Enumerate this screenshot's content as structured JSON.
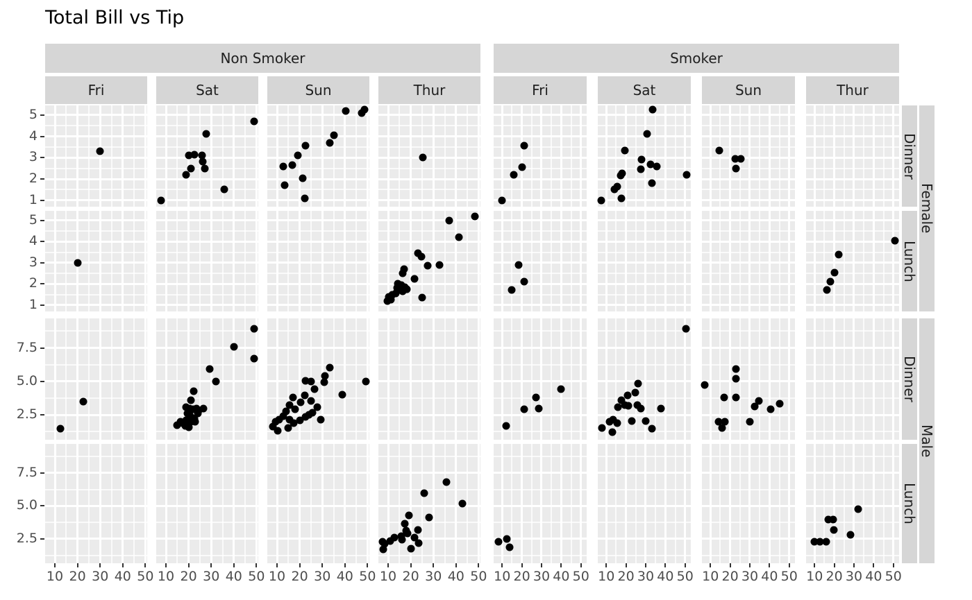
{
  "chart_data": {
    "type": "scatter",
    "title": "Total Bill vs Tip",
    "xlabel": "",
    "ylabel": "",
    "legend": "none",
    "grid": "on",
    "point_color": "#000000",
    "panel_bg": "#ebebeb",
    "strip_bg": "#d6d6d6",
    "x_ticks": [
      {
        "v": 10,
        "t": "10"
      },
      {
        "v": 20,
        "t": "20"
      },
      {
        "v": 30,
        "t": "30"
      },
      {
        "v": 40,
        "t": "40"
      },
      {
        "v": 50,
        "t": "50"
      }
    ],
    "x_minor": [
      15,
      25,
      35,
      45
    ],
    "col_groups": [
      {
        "label": "Non Smoker",
        "days": [
          "Fri",
          "Sat",
          "Sun",
          "Thur"
        ]
      },
      {
        "label": "Smoker",
        "days": [
          "Fri",
          "Sat",
          "Sun",
          "Thur"
        ]
      }
    ],
    "row_strips": [
      {
        "time": "Dinner",
        "sex": "Female",
        "y_ticks": [
          {
            "v": 5,
            "t": "5"
          },
          {
            "v": 4,
            "t": "4"
          },
          {
            "v": 3,
            "t": "3"
          },
          {
            "v": 2,
            "t": "2"
          },
          {
            "v": 1,
            "t": "1"
          }
        ],
        "y_minor": [
          1.5,
          2.5,
          3.5,
          4.5
        ],
        "y_domain": [
          0.7,
          5.45
        ]
      },
      {
        "time": "Lunch",
        "sex": "Female",
        "y_ticks": [
          {
            "v": 5,
            "t": "5"
          },
          {
            "v": 4,
            "t": "4"
          },
          {
            "v": 3,
            "t": "3"
          },
          {
            "v": 2,
            "t": "2"
          },
          {
            "v": 1,
            "t": "1"
          }
        ],
        "y_minor": [
          1.5,
          2.5,
          3.5,
          4.5
        ],
        "y_domain": [
          0.7,
          5.45
        ]
      },
      {
        "time": "Dinner",
        "sex": "Male",
        "y_ticks": [
          {
            "v": 7.5,
            "t": "7.5"
          },
          {
            "v": 5,
            "t": "5.0"
          },
          {
            "v": 2.5,
            "t": "2.5"
          }
        ],
        "y_minor": [
          1.25,
          3.75,
          6.25,
          8.75
        ],
        "y_domain": [
          0.65,
          9.7
        ]
      },
      {
        "time": "Lunch",
        "sex": "Male",
        "y_ticks": [
          {
            "v": 7.5,
            "t": "7.5"
          },
          {
            "v": 5,
            "t": "5.0"
          },
          {
            "v": 2.5,
            "t": "2.5"
          }
        ],
        "y_minor": [
          1.25,
          3.75,
          6.25,
          8.75
        ],
        "y_domain": [
          0.65,
          9.7
        ]
      }
    ],
    "sex_groups": [
      "Female",
      "Male"
    ],
    "points": [
      [
        [
          [
            29.9,
            3.3
          ]
        ],
        [
          [
            7.9,
            1.0
          ],
          [
            18.9,
            2.2
          ],
          [
            21.1,
            2.5
          ],
          [
            20.1,
            3.1
          ],
          [
            22.5,
            3.15
          ],
          [
            25.9,
            3.1
          ],
          [
            26.4,
            2.8
          ],
          [
            27.2,
            2.5
          ],
          [
            27.8,
            4.1
          ],
          [
            35.7,
            1.5
          ],
          [
            48.9,
            4.7
          ]
        ],
        [
          [
            12.7,
            2.6
          ],
          [
            13.5,
            1.7
          ],
          [
            16.8,
            2.65
          ],
          [
            19.2,
            3.1
          ],
          [
            21.4,
            2.05
          ],
          [
            22.3,
            1.1
          ],
          [
            22.6,
            3.55
          ],
          [
            33.3,
            3.7
          ],
          [
            35.1,
            4.05
          ],
          [
            40.4,
            5.2
          ],
          [
            47.4,
            5.1
          ],
          [
            48.6,
            5.25
          ]
        ],
        [
          [
            25.3,
            3.0
          ]
        ],
        [
          [
            10.0,
            1.0
          ],
          [
            16.0,
            2.2
          ],
          [
            20.0,
            2.55
          ],
          [
            21.2,
            3.55
          ]
        ],
        [
          [
            7.4,
            1.0
          ],
          [
            14.1,
            1.5
          ],
          [
            15.7,
            1.65
          ],
          [
            17.3,
            2.15
          ],
          [
            18.2,
            2.25
          ],
          [
            17.7,
            1.1
          ],
          [
            19.5,
            3.35
          ],
          [
            28.0,
            2.9
          ],
          [
            27.6,
            2.45
          ],
          [
            30.7,
            4.1
          ],
          [
            32.6,
            2.7
          ],
          [
            35.6,
            2.6
          ],
          [
            33.6,
            5.25
          ],
          [
            33.0,
            1.8
          ],
          [
            50.9,
            2.2
          ]
        ],
        [
          [
            14.4,
            3.35
          ],
          [
            22.7,
            2.95
          ],
          [
            25.4,
            2.95
          ],
          [
            22.8,
            2.5
          ]
        ],
        []
      ],
      [
        [
          [
            20.2,
            3.0
          ]
        ],
        [],
        [],
        [
          [
            37.1,
            5.0
          ],
          [
            48.2,
            5.2
          ],
          [
            41.2,
            4.2
          ],
          [
            23.1,
            3.45
          ],
          [
            24.8,
            3.3
          ],
          [
            27.5,
            2.85
          ],
          [
            32.8,
            2.9
          ],
          [
            17.1,
            2.7
          ],
          [
            16.3,
            2.5
          ],
          [
            21.6,
            2.25
          ],
          [
            14.4,
            2.0
          ],
          [
            15.7,
            1.95
          ],
          [
            17.3,
            1.85
          ],
          [
            18.3,
            1.75
          ],
          [
            13.9,
            1.8
          ],
          [
            15.2,
            1.7
          ],
          [
            16.4,
            1.65
          ],
          [
            13.4,
            1.55
          ],
          [
            11.8,
            1.5
          ],
          [
            10.3,
            1.4
          ],
          [
            9.8,
            1.2
          ],
          [
            11.3,
            1.25
          ],
          [
            25.1,
            1.35
          ]
        ],
        [
          [
            18.3,
            2.9
          ],
          [
            21.2,
            2.1
          ],
          [
            14.7,
            1.7
          ]
        ],
        [],
        [],
        [
          [
            16.1,
            1.7
          ],
          [
            18.2,
            2.1
          ],
          [
            20.0,
            2.55
          ],
          [
            22.1,
            3.4
          ],
          [
            50.7,
            4.05
          ]
        ]
      ],
      [
        [
          [
            12.5,
            1.5
          ],
          [
            22.7,
            3.5
          ]
        ],
        [
          [
            48.9,
            8.9
          ],
          [
            40.2,
            7.6
          ],
          [
            48.9,
            6.7
          ],
          [
            29.4,
            5.9
          ],
          [
            32.0,
            5.0
          ],
          [
            22.4,
            4.25
          ],
          [
            21.0,
            3.6
          ],
          [
            19.0,
            3.1
          ],
          [
            20.5,
            3.0
          ],
          [
            22.0,
            2.9
          ],
          [
            23.5,
            3.0
          ],
          [
            24.5,
            2.8
          ],
          [
            19.5,
            2.6
          ],
          [
            20.5,
            2.5
          ],
          [
            21.5,
            2.3
          ],
          [
            22.5,
            2.2
          ],
          [
            23.0,
            2.0
          ],
          [
            21.0,
            2.0
          ],
          [
            19.0,
            2.1
          ],
          [
            17.5,
            1.9
          ],
          [
            18.5,
            1.7
          ],
          [
            20.0,
            1.6
          ],
          [
            24.0,
            2.6
          ],
          [
            26.5,
            3.0
          ],
          [
            16.5,
            2.0
          ],
          [
            15.0,
            1.75
          ]
        ],
        [
          [
            33.3,
            6.05
          ],
          [
            31.3,
            5.4
          ],
          [
            22.6,
            5.05
          ],
          [
            25.1,
            5.0
          ],
          [
            31.0,
            4.95
          ],
          [
            26.7,
            4.45
          ],
          [
            49.2,
            5.0
          ],
          [
            38.9,
            4.0
          ],
          [
            17.0,
            3.8
          ],
          [
            22.4,
            3.95
          ],
          [
            20.5,
            3.45
          ],
          [
            25.1,
            3.55
          ],
          [
            15.4,
            3.25
          ],
          [
            18.0,
            2.95
          ],
          [
            13.9,
            2.75
          ],
          [
            27.7,
            3.1
          ],
          [
            24.1,
            2.5
          ],
          [
            25.7,
            2.65
          ],
          [
            12.8,
            2.4
          ],
          [
            15.4,
            2.15
          ],
          [
            10.8,
            2.15
          ],
          [
            9.3,
            2.0
          ],
          [
            17.5,
            1.9
          ],
          [
            20.0,
            2.1
          ],
          [
            22.6,
            2.35
          ],
          [
            29.2,
            2.15
          ],
          [
            8.3,
            1.65
          ],
          [
            14.9,
            1.55
          ],
          [
            10.3,
            1.3
          ]
        ],
        [],
        [
          [
            12.1,
            1.7
          ],
          [
            21.2,
            2.95
          ],
          [
            27.1,
            3.8
          ],
          [
            28.6,
            3.0
          ],
          [
            40.0,
            4.45
          ]
        ],
        [
          [
            50.3,
            8.9
          ],
          [
            26.0,
            4.85
          ],
          [
            24.8,
            4.15
          ],
          [
            20.7,
            3.95
          ],
          [
            17.7,
            3.6
          ],
          [
            19.5,
            3.25
          ],
          [
            16.0,
            3.1
          ],
          [
            21.3,
            3.2
          ],
          [
            25.9,
            3.25
          ],
          [
            27.7,
            3.0
          ],
          [
            37.7,
            3.0
          ],
          [
            23.0,
            2.05
          ],
          [
            30.1,
            2.05
          ],
          [
            11.8,
            2.0
          ],
          [
            13.6,
            2.15
          ],
          [
            15.4,
            1.9
          ],
          [
            7.7,
            1.55
          ],
          [
            13.0,
            1.2
          ],
          [
            33.0,
            1.5
          ]
        ],
        [
          [
            7.2,
            4.75
          ],
          [
            23.1,
            5.95
          ],
          [
            23.1,
            5.2
          ],
          [
            17.0,
            3.8
          ],
          [
            23.1,
            3.8
          ],
          [
            32.3,
            3.15
          ],
          [
            34.6,
            3.55
          ],
          [
            40.7,
            2.9
          ],
          [
            45.2,
            3.35
          ],
          [
            14.3,
            2.0
          ],
          [
            17.2,
            2.0
          ],
          [
            15.8,
            1.55
          ],
          [
            30.1,
            2.0
          ]
        ],
        []
      ],
      [
        [],
        [],
        [],
        [
          [
            35.9,
            6.8
          ],
          [
            26.0,
            5.95
          ],
          [
            42.8,
            5.15
          ],
          [
            19.3,
            4.3
          ],
          [
            28.0,
            4.1
          ],
          [
            17.3,
            3.65
          ],
          [
            18.0,
            3.1
          ],
          [
            15.8,
            2.7
          ],
          [
            12.8,
            2.6
          ],
          [
            16.1,
            2.45
          ],
          [
            18.7,
            2.9
          ],
          [
            23.2,
            3.2
          ],
          [
            21.7,
            2.6
          ],
          [
            23.5,
            2.2
          ],
          [
            20.2,
            1.75
          ],
          [
            8.6,
            2.1
          ],
          [
            7.5,
            2.3
          ],
          [
            10.9,
            2.35
          ],
          [
            7.9,
            1.7
          ]
        ],
        [
          [
            8.3,
            2.3
          ],
          [
            12.5,
            2.5
          ],
          [
            13.7,
            1.85
          ]
        ],
        [],
        [],
        [
          [
            10.0,
            2.3
          ],
          [
            12.9,
            2.3
          ],
          [
            16.0,
            2.3
          ],
          [
            16.8,
            3.95
          ],
          [
            19.3,
            3.95
          ],
          [
            19.7,
            3.15
          ],
          [
            28.2,
            2.8
          ],
          [
            32.2,
            4.75
          ]
        ]
      ]
    ]
  }
}
